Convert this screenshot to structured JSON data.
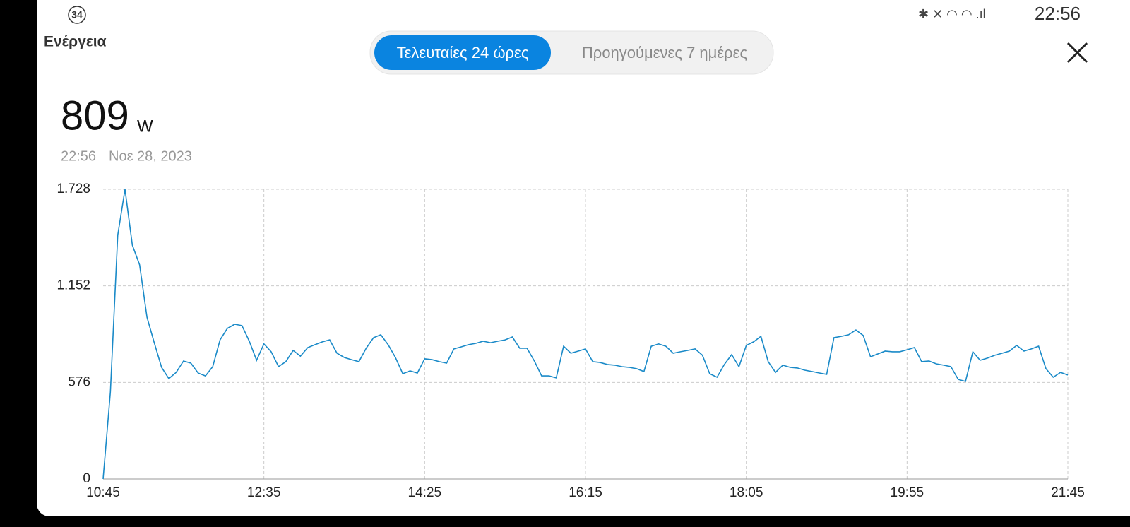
{
  "status_bar": {
    "badge": "34",
    "time": "22:56"
  },
  "header": {
    "title": "Ενέργεια"
  },
  "tabs": {
    "items": [
      "Τελευταίες 24 ώρες",
      "Προηγούμενες 7 ημέρες"
    ],
    "selected": 0
  },
  "reading": {
    "value": 809,
    "unit": "W",
    "time": "22:56",
    "date": "Νοε 28, 2023"
  },
  "chart_data": {
    "type": "line",
    "color": "#1a8ac8",
    "grid": true,
    "categories": [
      "10:45",
      null,
      null,
      null,
      null,
      null,
      null,
      null,
      null,
      null,
      null,
      null,
      null,
      null,
      null,
      null,
      null,
      null,
      null,
      null,
      null,
      null,
      "12:35",
      null,
      null,
      null,
      null,
      null,
      null,
      null,
      null,
      null,
      null,
      null,
      null,
      null,
      null,
      null,
      null,
      null,
      null,
      null,
      null,
      null,
      "14:25",
      null,
      null,
      null,
      null,
      null,
      null,
      null,
      null,
      null,
      null,
      null,
      null,
      null,
      null,
      null,
      null,
      null,
      null,
      null,
      null,
      null,
      "16:15",
      null,
      null,
      null,
      null,
      null,
      null,
      null,
      null,
      null,
      null,
      null,
      null,
      null,
      null,
      null,
      null,
      null,
      null,
      null,
      null,
      null,
      "18:05",
      null,
      null,
      null,
      null,
      null,
      null,
      null,
      null,
      null,
      null,
      null,
      null,
      null,
      null,
      null,
      null,
      null,
      null,
      null,
      null,
      null,
      "19:55",
      null,
      null,
      null,
      null,
      null,
      null,
      null,
      null,
      null,
      null,
      null,
      null,
      null,
      null,
      null,
      null,
      null,
      null,
      null,
      null,
      null,
      "21:45"
    ],
    "values": [
      0,
      518,
      1454,
      1728,
      1395,
      1277,
      965,
      813,
      666,
      599,
      636,
      704,
      691,
      632,
      615,
      670,
      830,
      898,
      923,
      915,
      822,
      708,
      806,
      759,
      670,
      700,
      767,
      733,
      784,
      801,
      818,
      830,
      750,
      725,
      712,
      700,
      780,
      843,
      860,
      801,
      725,
      628,
      645,
      632,
      717,
      712,
      700,
      691,
      776,
      788,
      801,
      809,
      822,
      813,
      822,
      830,
      847,
      780,
      780,
      704,
      615,
      615,
      603,
      792,
      750,
      763,
      776,
      700,
      695,
      683,
      679,
      670,
      666,
      658,
      641,
      792,
      806,
      792,
      750,
      759,
      767,
      776,
      738,
      628,
      607,
      683,
      742,
      670,
      797,
      818,
      851,
      700,
      636,
      679,
      666,
      662,
      649,
      641,
      632,
      624,
      843,
      851,
      860,
      889,
      856,
      729,
      746,
      763,
      759,
      759,
      771,
      784,
      700,
      704,
      687,
      679,
      670,
      594,
      582,
      759,
      708,
      721,
      738,
      750,
      763,
      797,
      763,
      776,
      792,
      658,
      607,
      636,
      620
    ],
    "ylim": [
      0,
      1728
    ],
    "yticks": [
      0,
      {
        "value": 576,
        "label": "576"
      },
      {
        "value": 1152,
        "label": "1.152"
      },
      {
        "value": 1728,
        "label": "1.728"
      }
    ]
  }
}
